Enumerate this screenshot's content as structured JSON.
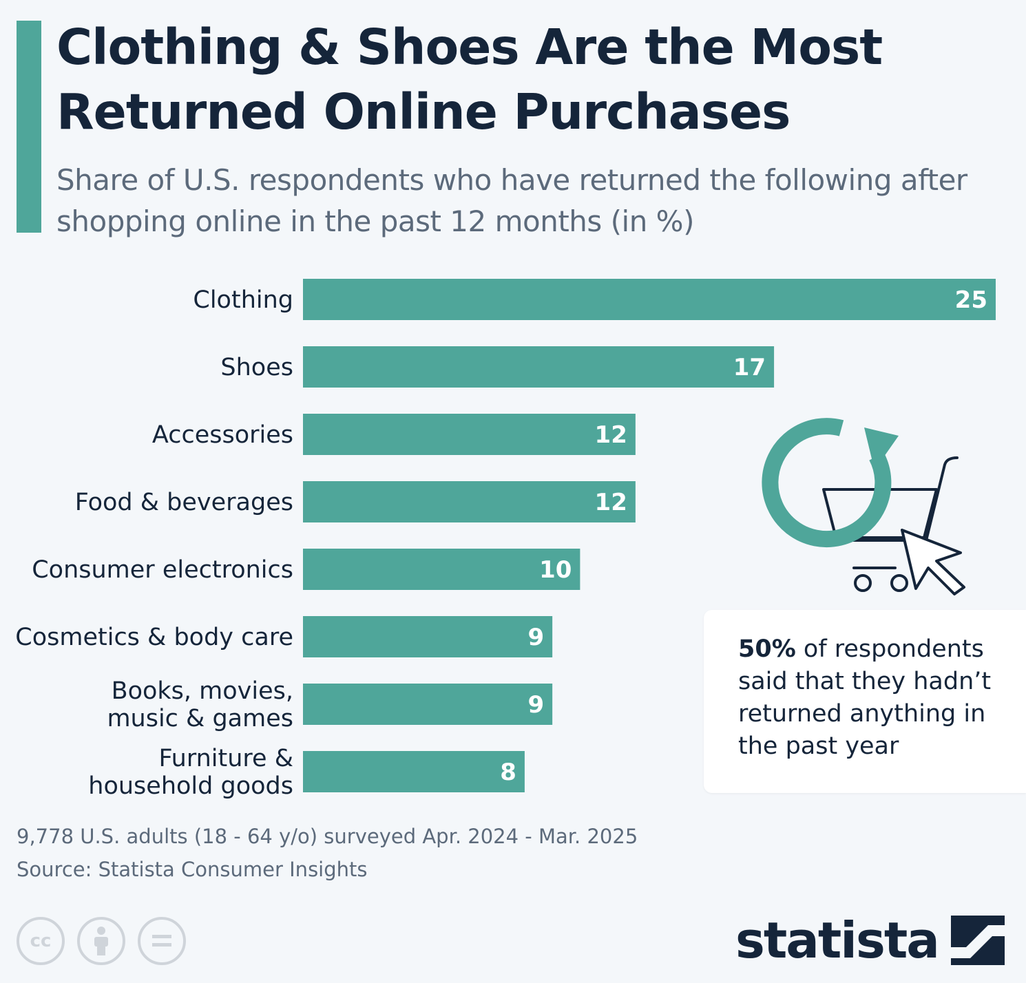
{
  "header": {
    "title": "Clothing & Shoes Are the Most Returned Online Purchases",
    "subtitle": "Share of U.S. respondents who have returned the following after shopping online in the past 12 months (in %)"
  },
  "colors": {
    "accent": "#4fa69a",
    "text": "#15253a",
    "muted": "#5c6a7b"
  },
  "chart_data": {
    "type": "bar",
    "orientation": "horizontal",
    "categories": [
      "Clothing",
      "Shoes",
      "Accessories",
      "Food & beverages",
      "Consumer electronics",
      "Cosmetics & body care",
      "Books, movies, music & games",
      "Furniture & household goods"
    ],
    "category_lines": [
      [
        "Clothing"
      ],
      [
        "Shoes"
      ],
      [
        "Accessories"
      ],
      [
        "Food & beverages"
      ],
      [
        "Consumer electronics"
      ],
      [
        "Cosmetics & body care"
      ],
      [
        "Books, movies,",
        "music & games"
      ],
      [
        "Furniture &",
        "household goods"
      ]
    ],
    "values": [
      25,
      17,
      12,
      12,
      10,
      9,
      9,
      8
    ],
    "xlim": [
      0,
      25
    ],
    "grid": false,
    "legend": "none",
    "bar_color": "#4fa69a"
  },
  "callout": {
    "highlight": "50%",
    "text": " of respondents said that they hadn’t returned anything in the past year"
  },
  "illustration": {
    "icon": "return-shopping-cart-icon"
  },
  "footer": {
    "note": "9,778 U.S. adults (18 - 64 y/o) surveyed Apr. 2024 - Mar. 2025",
    "source": "Source: Statista Consumer Insights",
    "license_icons": [
      "cc-icon",
      "attribution-icon",
      "no-derivatives-icon"
    ],
    "license_cc": "cc",
    "logo": "statista"
  }
}
